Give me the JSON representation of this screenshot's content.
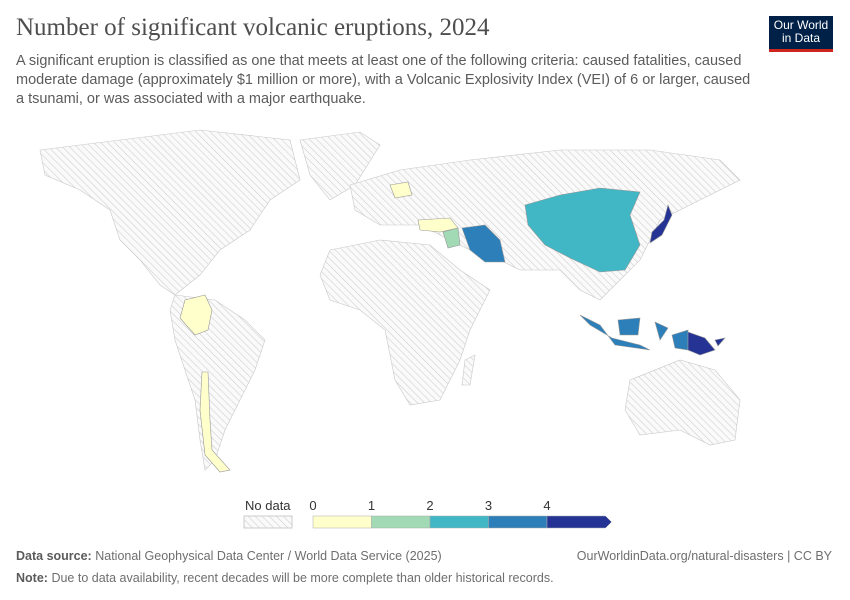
{
  "title": "Number of significant volcanic eruptions, 2024",
  "subtitle": "A significant eruption is classified as one that meets at least one of the following criteria: caused fatalities, caused moderate damage (approximately $1 million or more), with a Volcanic Explosivity Index (VEI) of 6 or larger, caused a tsunami, or was associated with a major earthquake.",
  "logo": {
    "line1": "Our World",
    "line2": "in Data",
    "bg": "#002147",
    "accent": "#ce261e"
  },
  "legend": {
    "no_data_label": "No data",
    "ticks": [
      "0",
      "1",
      "2",
      "3",
      "4"
    ],
    "bins": [
      {
        "range": "0–1",
        "color": "#ffffcc"
      },
      {
        "range": "1–2",
        "color": "#a1dab4"
      },
      {
        "range": "2–3",
        "color": "#41b6c4"
      },
      {
        "range": "3–4",
        "color": "#2c7fb8"
      },
      {
        "range": "4+",
        "color": "#253494"
      }
    ]
  },
  "countries": [
    {
      "name": "Colombia",
      "bin": 0
    },
    {
      "name": "Chile",
      "bin": 0
    },
    {
      "name": "Poland",
      "bin": 0
    },
    {
      "name": "Turkey",
      "bin": 0
    },
    {
      "name": "Syria",
      "bin": 1
    },
    {
      "name": "China",
      "bin": 2
    },
    {
      "name": "Iran",
      "bin": 3
    },
    {
      "name": "Indonesia",
      "bin": 3
    },
    {
      "name": "Japan",
      "bin": 4
    },
    {
      "name": "Papua New Guinea",
      "bin": 4
    }
  ],
  "footer": {
    "source_label": "Data source:",
    "source": "National Geophysical Data Center / World Data Service (2025)",
    "url": "OurWorldinData.org/natural-disasters | CC BY",
    "note_label": "Note:",
    "note": "Due to data availability, recent decades will be more complete than older historical records."
  }
}
